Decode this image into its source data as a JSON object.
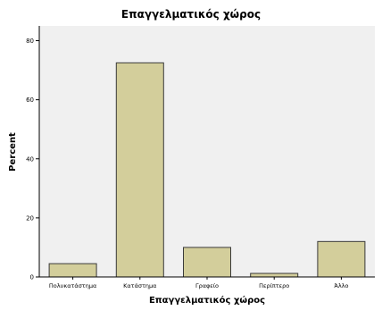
{
  "chart_data": {
    "type": "bar",
    "title": "Επαγγελματικός χώρος",
    "xlabel": "Επαγγελματικός χώρος",
    "ylabel": "Percent",
    "categories": [
      "Πολυκατάστημα",
      "Κατάστημα",
      "Γραφείο",
      "Περίπτερο",
      "Άλλο"
    ],
    "values": [
      4.5,
      72.5,
      10,
      1.2,
      12
    ],
    "ylim": [
      0,
      85
    ],
    "yticks": [
      "0",
      "20",
      "40",
      "60",
      "80"
    ],
    "grid": false,
    "colors": {
      "bar_fill": "#d3ce9b",
      "bar_stroke": "#3a3a3a",
      "plot_background": "#f0f0f0",
      "page_background": "#ffffff"
    }
  }
}
